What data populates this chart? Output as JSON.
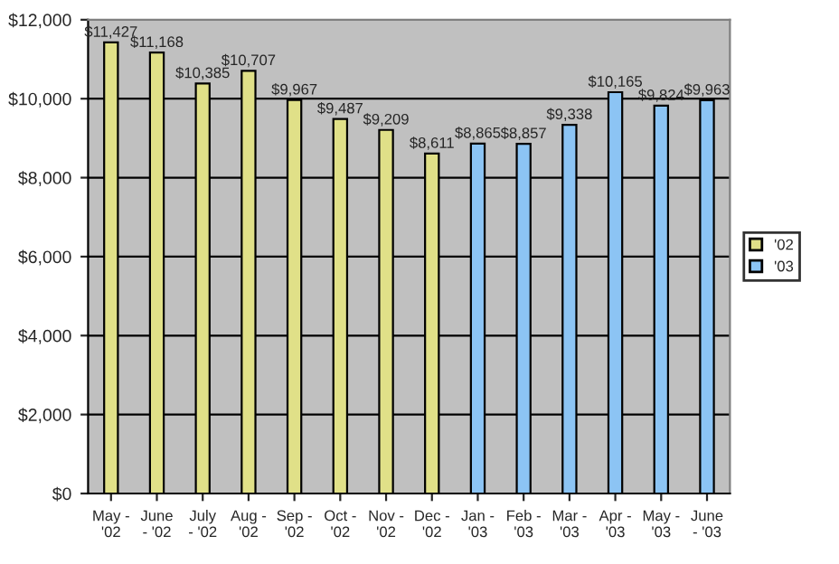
{
  "chart_data": {
    "type": "bar",
    "categories": [
      "May - '02",
      "June - '02",
      "July - '02",
      "Aug - '02",
      "Sep - '02",
      "Oct - '02",
      "Nov - '02",
      "Dec - '02",
      "Jan - '03",
      "Feb - '03",
      "Mar - '03",
      "Apr - '03",
      "May - '03",
      "June - '03"
    ],
    "series": [
      {
        "name": "'02",
        "color": "#e0e088",
        "values": [
          11427,
          11168,
          10385,
          10707,
          9967,
          9487,
          9209,
          8611,
          null,
          null,
          null,
          null,
          null,
          null
        ],
        "value_labels": [
          "$11,427",
          "$11,168",
          "$10,385",
          "$10,707",
          "$9,967",
          "$9,487",
          "$9,209",
          "$8,611",
          null,
          null,
          null,
          null,
          null,
          null
        ]
      },
      {
        "name": "'03",
        "color": "#8cc4f4",
        "values": [
          null,
          null,
          null,
          null,
          null,
          null,
          null,
          null,
          8865,
          8857,
          9338,
          10165,
          9824,
          9963
        ],
        "value_labels": [
          null,
          null,
          null,
          null,
          null,
          null,
          null,
          null,
          "$8,865",
          "$8,857",
          "$9,338",
          "$10,165",
          "$9,824",
          "$9,963"
        ]
      }
    ],
    "ylim": [
      0,
      12000
    ],
    "yticks": [
      {
        "value": 0,
        "label": "$0"
      },
      {
        "value": 2000,
        "label": "$2,000"
      },
      {
        "value": 4000,
        "label": "$4,000"
      },
      {
        "value": 6000,
        "label": "$6,000"
      },
      {
        "value": 8000,
        "label": "$8,000"
      },
      {
        "value": 10000,
        "label": "$10,000"
      },
      {
        "value": 12000,
        "label": "$12,000"
      }
    ],
    "grid": "y",
    "legend": "right"
  }
}
